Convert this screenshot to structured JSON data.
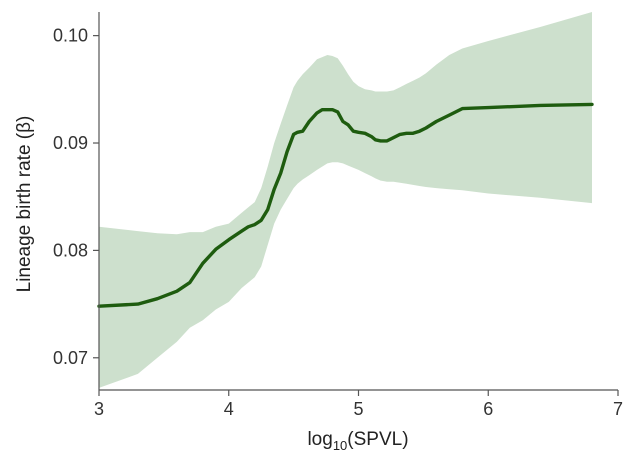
{
  "chart_data": {
    "type": "line",
    "title": "",
    "xlabel": {
      "prefix": "log",
      "subscript": "10",
      "suffix": "(SPVL)"
    },
    "ylabel": "Lineage birth rate (β)",
    "xlim": [
      3,
      7
    ],
    "ylim": [
      0.067,
      0.1022
    ],
    "xticks": [
      3,
      4,
      5,
      6,
      7
    ],
    "yticks": [
      0.07,
      0.08,
      0.09,
      0.1
    ],
    "xtick_labels": [
      "3",
      "4",
      "5",
      "6",
      "7"
    ],
    "ytick_labels": [
      "0.07",
      "0.08",
      "0.09",
      "0.10"
    ],
    "grid": false,
    "colors": {
      "line": "#1e5c0f",
      "band": "#cde0cd"
    },
    "series": [
      {
        "x": [
          3.0,
          3.3,
          3.45,
          3.6,
          3.7,
          3.8,
          3.9,
          4.0,
          4.1,
          4.15,
          4.2,
          4.25,
          4.3,
          4.35,
          4.4,
          4.45,
          4.5,
          4.53,
          4.57,
          4.62,
          4.68,
          4.72,
          4.76,
          4.8,
          4.84,
          4.88,
          4.92,
          4.96,
          5.0,
          5.05,
          5.1,
          5.13,
          5.17,
          5.22,
          5.27,
          5.32,
          5.37,
          5.42,
          5.47,
          5.52,
          5.6,
          5.7,
          5.8,
          6.0,
          6.4,
          6.8
        ],
        "y": [
          0.0748,
          0.075,
          0.0755,
          0.0762,
          0.077,
          0.0788,
          0.0801,
          0.081,
          0.0818,
          0.0822,
          0.0824,
          0.0828,
          0.0838,
          0.0857,
          0.0872,
          0.0892,
          0.0908,
          0.091,
          0.0911,
          0.092,
          0.0928,
          0.0931,
          0.0931,
          0.0931,
          0.0929,
          0.092,
          0.0917,
          0.0911,
          0.091,
          0.0909,
          0.0906,
          0.0903,
          0.0902,
          0.0902,
          0.0905,
          0.0908,
          0.0909,
          0.0909,
          0.0911,
          0.0914,
          0.092,
          0.0926,
          0.0932,
          0.0933,
          0.0935,
          0.0936
        ],
        "lower": [
          0.0672,
          0.0685,
          0.07,
          0.0715,
          0.0728,
          0.0735,
          0.0745,
          0.0752,
          0.0765,
          0.077,
          0.0775,
          0.0785,
          0.0805,
          0.0825,
          0.0838,
          0.0848,
          0.0858,
          0.0862,
          0.0866,
          0.087,
          0.0875,
          0.0878,
          0.0881,
          0.0882,
          0.0882,
          0.0881,
          0.0879,
          0.0877,
          0.0875,
          0.0872,
          0.0869,
          0.0867,
          0.0865,
          0.0864,
          0.0864,
          0.0863,
          0.0862,
          0.0861,
          0.086,
          0.0859,
          0.0858,
          0.0857,
          0.0856,
          0.0853,
          0.0849,
          0.0844
        ],
        "upper": [
          0.0822,
          0.0818,
          0.0816,
          0.0815,
          0.0817,
          0.0817,
          0.0822,
          0.0825,
          0.0835,
          0.084,
          0.0845,
          0.0858,
          0.0878,
          0.09,
          0.0918,
          0.0935,
          0.0952,
          0.0958,
          0.0964,
          0.097,
          0.0978,
          0.098,
          0.0982,
          0.0981,
          0.0979,
          0.0972,
          0.0964,
          0.0957,
          0.0953,
          0.095,
          0.0949,
          0.0948,
          0.0948,
          0.0948,
          0.0949,
          0.0952,
          0.0955,
          0.0958,
          0.0961,
          0.0965,
          0.0973,
          0.0982,
          0.0988,
          0.0995,
          0.1008,
          0.1022
        ]
      }
    ]
  }
}
